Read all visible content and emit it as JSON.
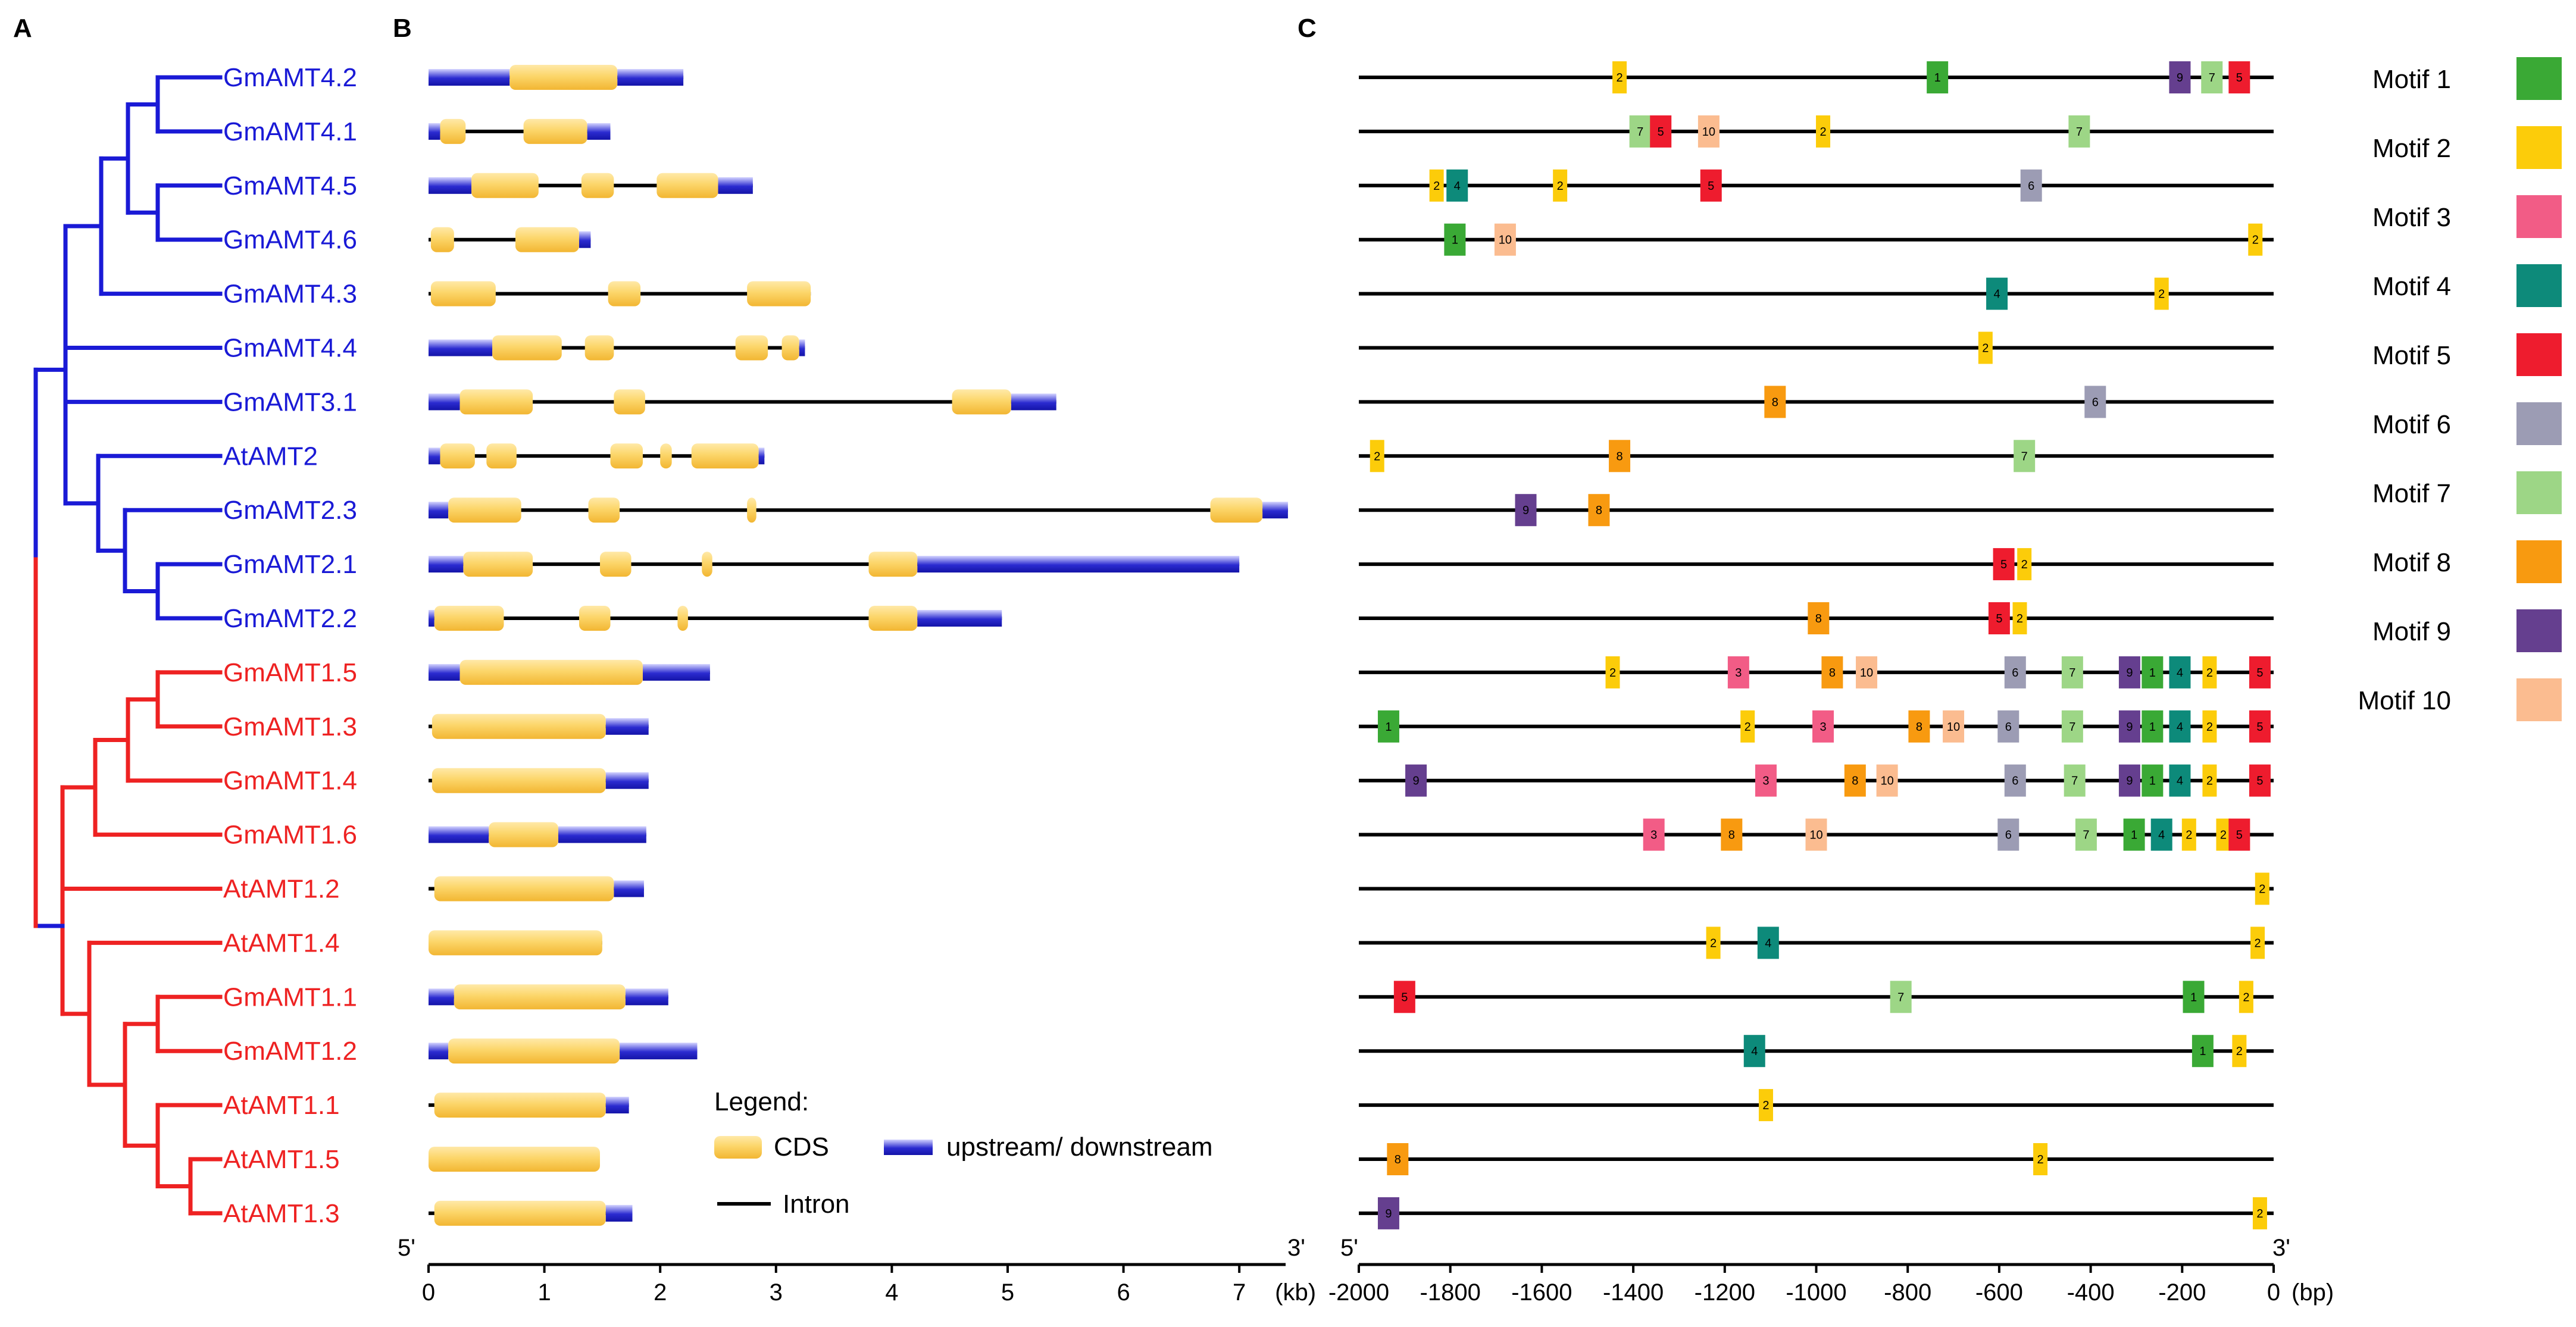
{
  "panels": {
    "a": "A",
    "b": "B",
    "c": "C"
  },
  "genes": [
    {
      "name": "GmAMT4.2",
      "clade": "blue"
    },
    {
      "name": "GmAMT4.1",
      "clade": "blue"
    },
    {
      "name": "GmAMT4.5",
      "clade": "blue"
    },
    {
      "name": "GmAMT4.6",
      "clade": "blue"
    },
    {
      "name": "GmAMT4.3",
      "clade": "blue"
    },
    {
      "name": "GmAMT4.4",
      "clade": "blue"
    },
    {
      "name": "GmAMT3.1",
      "clade": "blue"
    },
    {
      "name": "AtAMT2",
      "clade": "blue"
    },
    {
      "name": "GmAMT2.3",
      "clade": "blue"
    },
    {
      "name": "GmAMT2.1",
      "clade": "blue"
    },
    {
      "name": "GmAMT2.2",
      "clade": "blue"
    },
    {
      "name": "GmAMT1.5",
      "clade": "red"
    },
    {
      "name": "GmAMT1.3",
      "clade": "red"
    },
    {
      "name": "GmAMT1.4",
      "clade": "red"
    },
    {
      "name": "GmAMT1.6",
      "clade": "red"
    },
    {
      "name": "AtAMT1.2",
      "clade": "red"
    },
    {
      "name": "AtAMT1.4",
      "clade": "red"
    },
    {
      "name": "GmAMT1.1",
      "clade": "red"
    },
    {
      "name": "GmAMT1.2",
      "clade": "red"
    },
    {
      "name": "AtAMT1.1",
      "clade": "red"
    },
    {
      "name": "AtAMT1.5",
      "clade": "red"
    },
    {
      "name": "AtAMT1.3",
      "clade": "red"
    }
  ],
  "colors": {
    "blue_clade": "#1a1ad6",
    "red_clade": "#ee2222",
    "cds": "#fcd66a",
    "utr": "#2b2bd0",
    "intron": "#000000"
  },
  "gene_structure": {
    "unit": "kb",
    "axis_min": 0,
    "axis_max": 7.4,
    "ticks": [
      "0",
      "1",
      "2",
      "3",
      "4",
      "5",
      "6",
      "7"
    ],
    "unit_label": "(kb)",
    "five_prime": "5'",
    "three_prime": "3'",
    "legend": {
      "title": "Legend:",
      "cds": "CDS",
      "utr": "upstream/ downstream",
      "intron": "Intron"
    },
    "genes": [
      {
        "utr": [
          [
            0,
            0.7
          ],
          [
            1.63,
            2.2
          ]
        ],
        "cds": [
          [
            0.7,
            1.63
          ]
        ],
        "span": [
          0,
          2.2
        ]
      },
      {
        "utr": [
          [
            0,
            0.1
          ],
          [
            1.37,
            1.57
          ]
        ],
        "cds": [
          [
            0.1,
            0.32
          ],
          [
            0.82,
            1.37
          ]
        ],
        "span": [
          0,
          1.57
        ]
      },
      {
        "utr": [
          [
            0,
            0.37
          ],
          [
            2.5,
            2.8
          ]
        ],
        "cds": [
          [
            0.37,
            0.95
          ],
          [
            1.32,
            1.6
          ],
          [
            1.97,
            2.5
          ]
        ],
        "span": [
          0,
          2.8
        ]
      },
      {
        "utr": [
          [
            1.3,
            1.4
          ]
        ],
        "cds": [
          [
            0.02,
            0.22
          ],
          [
            0.75,
            1.3
          ]
        ],
        "span": [
          0,
          1.4
        ]
      },
      {
        "utr": [],
        "cds": [
          [
            0.02,
            0.58
          ],
          [
            1.55,
            1.83
          ],
          [
            2.75,
            3.3
          ]
        ],
        "span": [
          0,
          3.3
        ]
      },
      {
        "utr": [
          [
            0,
            0.55
          ],
          [
            3.2,
            3.25
          ]
        ],
        "cds": [
          [
            0.55,
            1.15
          ],
          [
            1.35,
            1.6
          ],
          [
            2.65,
            2.93
          ],
          [
            3.05,
            3.2
          ]
        ],
        "span": [
          0,
          3.25
        ]
      },
      {
        "utr": [
          [
            0,
            0.27
          ],
          [
            5.03,
            5.42
          ]
        ],
        "cds": [
          [
            0.27,
            0.9
          ],
          [
            1.6,
            1.87
          ],
          [
            4.52,
            5.03
          ]
        ],
        "span": [
          0,
          5.42
        ]
      },
      {
        "utr": [
          [
            0,
            0.1
          ],
          [
            2.85,
            2.9
          ]
        ],
        "cds": [
          [
            0.1,
            0.4
          ],
          [
            0.5,
            0.76
          ],
          [
            1.57,
            1.85
          ],
          [
            2.0,
            2.1
          ],
          [
            2.27,
            2.85
          ]
        ],
        "span": [
          0,
          2.9
        ]
      },
      {
        "utr": [
          [
            0,
            0.17
          ],
          [
            7.2,
            7.42
          ]
        ],
        "cds": [
          [
            0.17,
            0.8
          ],
          [
            1.38,
            1.65
          ],
          [
            2.75,
            2.83
          ],
          [
            6.75,
            7.2
          ]
        ],
        "span": [
          0,
          7.42
        ]
      },
      {
        "utr": [
          [
            0,
            0.3
          ],
          [
            4.22,
            7.0
          ]
        ],
        "cds": [
          [
            0.3,
            0.9
          ],
          [
            1.48,
            1.75
          ],
          [
            2.36,
            2.45
          ],
          [
            3.8,
            4.22
          ]
        ],
        "span": [
          0,
          7.0
        ]
      },
      {
        "utr": [
          [
            0,
            0.05
          ],
          [
            4.22,
            4.95
          ]
        ],
        "cds": [
          [
            0.05,
            0.65
          ],
          [
            1.3,
            1.57
          ],
          [
            2.15,
            2.24
          ],
          [
            3.8,
            4.22
          ]
        ],
        "span": [
          0,
          4.95
        ]
      },
      {
        "utr": [
          [
            0,
            0.27
          ],
          [
            1.85,
            2.43
          ]
        ],
        "cds": [
          [
            0.27,
            1.85
          ]
        ],
        "span": [
          0,
          2.43
        ]
      },
      {
        "utr": [
          [
            1.53,
            1.9
          ]
        ],
        "cds": [
          [
            0.03,
            1.53
          ]
        ],
        "span": [
          0,
          1.9
        ]
      },
      {
        "utr": [
          [
            1.53,
            1.9
          ]
        ],
        "cds": [
          [
            0.03,
            1.53
          ]
        ],
        "span": [
          0,
          1.9
        ]
      },
      {
        "utr": [
          [
            0,
            0.52
          ],
          [
            1.12,
            1.88
          ]
        ],
        "cds": [
          [
            0.52,
            1.12
          ]
        ],
        "span": [
          0,
          1.88
        ]
      },
      {
        "utr": [
          [
            1.6,
            1.86
          ]
        ],
        "cds": [
          [
            0.05,
            1.6
          ]
        ],
        "span": [
          0,
          1.86
        ]
      },
      {
        "utr": [],
        "cds": [
          [
            0,
            1.5
          ]
        ],
        "span": [
          0,
          1.5
        ]
      },
      {
        "utr": [
          [
            0,
            0.22
          ],
          [
            1.7,
            2.07
          ]
        ],
        "cds": [
          [
            0.22,
            1.7
          ]
        ],
        "span": [
          0,
          2.07
        ]
      },
      {
        "utr": [
          [
            0,
            0.17
          ],
          [
            1.65,
            2.32
          ]
        ],
        "cds": [
          [
            0.17,
            1.65
          ]
        ],
        "span": [
          0,
          2.32
        ]
      },
      {
        "utr": [
          [
            1.53,
            1.73
          ]
        ],
        "cds": [
          [
            0.05,
            1.53
          ]
        ],
        "span": [
          0,
          1.73
        ]
      },
      {
        "utr": [],
        "cds": [
          [
            0,
            1.48
          ]
        ],
        "span": [
          0,
          1.48
        ]
      },
      {
        "utr": [
          [
            1.53,
            1.76
          ]
        ],
        "cds": [
          [
            0.05,
            1.53
          ]
        ],
        "span": [
          0,
          1.76
        ]
      }
    ]
  },
  "motif_panel": {
    "unit": "bp",
    "axis_min": -2000,
    "axis_max": 0,
    "ticks": [
      "-2000",
      "-1800",
      "-1600",
      "-1400",
      "-1200",
      "-1000",
      "-800",
      "-600",
      "-400",
      "-200",
      "0"
    ],
    "unit_label": "(bp)",
    "five_prime": "5'",
    "three_prime": "3'",
    "legend": [
      {
        "label": "Motif 1",
        "color": "#3aa935"
      },
      {
        "label": "Motif 2",
        "color": "#fccc0a"
      },
      {
        "label": "Motif 3",
        "color": "#f25c86"
      },
      {
        "label": "Motif 4",
        "color": "#0d8a7a"
      },
      {
        "label": "Motif 5",
        "color": "#ee1c2e"
      },
      {
        "label": "Motif 6",
        "color": "#9c9cb4"
      },
      {
        "label": "Motif 7",
        "color": "#9dd686"
      },
      {
        "label": "Motif 8",
        "color": "#f89a10"
      },
      {
        "label": "Motif 9",
        "color": "#653f8f"
      },
      {
        "label": "Motif 10",
        "color": "#fbbc90"
      }
    ],
    "genes": [
      [
        {
          "m": 2,
          "p": -1430
        },
        {
          "m": 1,
          "p": -735
        },
        {
          "m": 9,
          "p": -205
        },
        {
          "m": 7,
          "p": -135
        },
        {
          "m": 5,
          "p": -75
        }
      ],
      [
        {
          "m": 7,
          "p": -1385
        },
        {
          "m": 5,
          "p": -1340
        },
        {
          "m": 10,
          "p": -1235
        },
        {
          "m": 2,
          "p": -985
        },
        {
          "m": 7,
          "p": -425
        }
      ],
      [
        {
          "m": 2,
          "p": -1830
        },
        {
          "m": 4,
          "p": -1785
        },
        {
          "m": 2,
          "p": -1560
        },
        {
          "m": 5,
          "p": -1230
        },
        {
          "m": 6,
          "p": -530
        }
      ],
      [
        {
          "m": 1,
          "p": -1790
        },
        {
          "m": 10,
          "p": -1680
        },
        {
          "m": 2,
          "p": -40
        }
      ],
      [
        {
          "m": 4,
          "p": -605
        },
        {
          "m": 2,
          "p": -245
        }
      ],
      [
        {
          "m": 2,
          "p": -630
        }
      ],
      [
        {
          "m": 8,
          "p": -1090
        },
        {
          "m": 6,
          "p": -390
        }
      ],
      [
        {
          "m": 2,
          "p": -1960
        },
        {
          "m": 8,
          "p": -1430
        },
        {
          "m": 7,
          "p": -545
        }
      ],
      [
        {
          "m": 9,
          "p": -1635
        },
        {
          "m": 8,
          "p": -1475
        }
      ],
      [
        {
          "m": 5,
          "p": -590
        },
        {
          "m": 2,
          "p": -545
        }
      ],
      [
        {
          "m": 8,
          "p": -995
        },
        {
          "m": 5,
          "p": -600
        },
        {
          "m": 2,
          "p": -555
        }
      ],
      [
        {
          "m": 2,
          "p": -1445
        },
        {
          "m": 3,
          "p": -1170
        },
        {
          "m": 8,
          "p": -965
        },
        {
          "m": 10,
          "p": -890
        },
        {
          "m": 6,
          "p": -565
        },
        {
          "m": 7,
          "p": -440
        },
        {
          "m": 9,
          "p": -315
        },
        {
          "m": 1,
          "p": -265
        },
        {
          "m": 4,
          "p": -205
        },
        {
          "m": 2,
          "p": -140
        },
        {
          "m": 5,
          "p": -30
        }
      ],
      [
        {
          "m": 1,
          "p": -1935
        },
        {
          "m": 2,
          "p": -1150
        },
        {
          "m": 3,
          "p": -985
        },
        {
          "m": 8,
          "p": -775
        },
        {
          "m": 10,
          "p": -700
        },
        {
          "m": 6,
          "p": -580
        },
        {
          "m": 7,
          "p": -440
        },
        {
          "m": 9,
          "p": -315
        },
        {
          "m": 1,
          "p": -265
        },
        {
          "m": 4,
          "p": -205
        },
        {
          "m": 2,
          "p": -140
        },
        {
          "m": 5,
          "p": -30
        }
      ],
      [
        {
          "m": 9,
          "p": -1875
        },
        {
          "m": 3,
          "p": -1110
        },
        {
          "m": 8,
          "p": -915
        },
        {
          "m": 10,
          "p": -845
        },
        {
          "m": 6,
          "p": -565
        },
        {
          "m": 7,
          "p": -435
        },
        {
          "m": 9,
          "p": -315
        },
        {
          "m": 1,
          "p": -265
        },
        {
          "m": 4,
          "p": -205
        },
        {
          "m": 2,
          "p": -140
        },
        {
          "m": 5,
          "p": -30
        }
      ],
      [
        {
          "m": 3,
          "p": -1355
        },
        {
          "m": 8,
          "p": -1185
        },
        {
          "m": 10,
          "p": -1000
        },
        {
          "m": 6,
          "p": -580
        },
        {
          "m": 7,
          "p": -410
        },
        {
          "m": 1,
          "p": -305
        },
        {
          "m": 4,
          "p": -245
        },
        {
          "m": 2,
          "p": -185
        },
        {
          "m": 2,
          "p": -110
        },
        {
          "m": 5,
          "p": -75
        }
      ],
      [
        {
          "m": 2,
          "p": -25
        }
      ],
      [
        {
          "m": 2,
          "p": -1225
        },
        {
          "m": 4,
          "p": -1105
        },
        {
          "m": 2,
          "p": -35
        }
      ],
      [
        {
          "m": 5,
          "p": -1900
        },
        {
          "m": 7,
          "p": -815
        },
        {
          "m": 1,
          "p": -175
        },
        {
          "m": 2,
          "p": -60
        }
      ],
      [
        {
          "m": 4,
          "p": -1135
        },
        {
          "m": 1,
          "p": -155
        },
        {
          "m": 2,
          "p": -75
        }
      ],
      [
        {
          "m": 2,
          "p": -1110
        }
      ],
      [
        {
          "m": 8,
          "p": -1915
        },
        {
          "m": 2,
          "p": -510
        }
      ],
      [
        {
          "m": 9,
          "p": -1935
        },
        {
          "m": 2,
          "p": -30
        }
      ]
    ]
  }
}
